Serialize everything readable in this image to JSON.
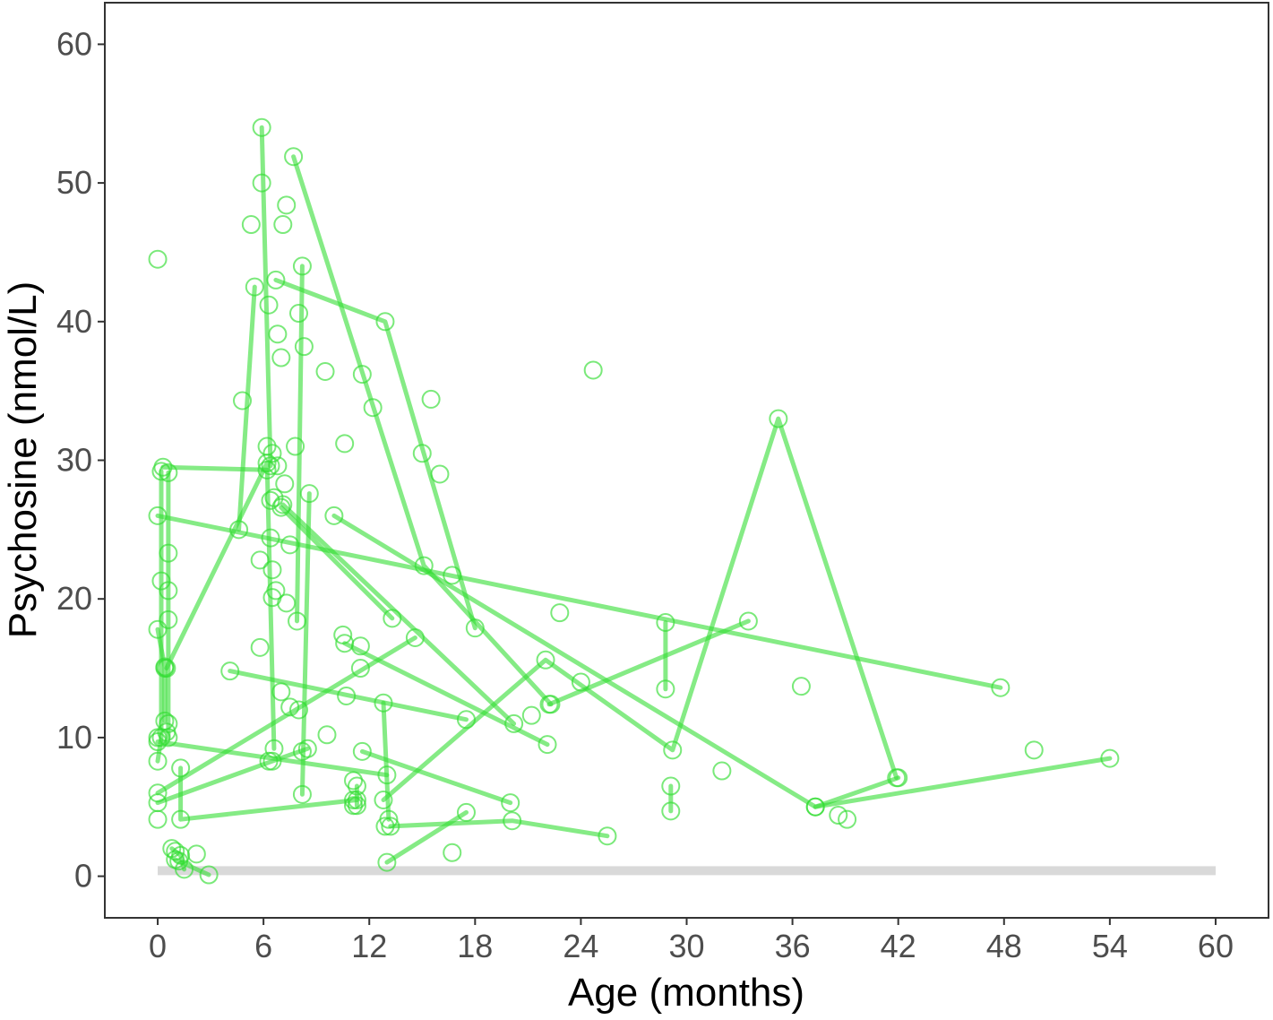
{
  "chart_data": {
    "type": "scatter",
    "xlabel": "Age (months)",
    "ylabel": "Psychosine (nmol/L)",
    "xlim": [
      -3,
      63
    ],
    "ylim": [
      -3,
      63
    ],
    "x_ticks": [
      0,
      6,
      12,
      18,
      24,
      30,
      36,
      42,
      48,
      54,
      60
    ],
    "y_ticks": [
      0,
      10,
      20,
      30,
      40,
      50,
      60
    ],
    "grid": false,
    "legend": "none",
    "colors": {
      "series": "#33dd33",
      "reference": "#d9d9d9",
      "axis": "#333333",
      "tick_text": "#4d4d4d"
    },
    "reference_band": {
      "x": [
        0,
        60
      ],
      "y": 0.4
    },
    "series": [
      {
        "points": [
          [
            0.3,
            29.5
          ],
          [
            6.2,
            29.3
          ]
        ]
      },
      {
        "points": [
          [
            0.0,
            26.0
          ],
          [
            47.8,
            13.6
          ]
        ]
      },
      {
        "points": [
          [
            0.6,
            29.1
          ],
          [
            0.6,
            23.3
          ],
          [
            0.6,
            20.6
          ],
          [
            0.6,
            18.5
          ],
          [
            0.6,
            11.0
          ],
          [
            0.6,
            10.0
          ]
        ]
      },
      {
        "points": [
          [
            0.0,
            17.8
          ],
          [
            0.4,
            15.1
          ],
          [
            0.4,
            11.2
          ]
        ]
      },
      {
        "points": [
          [
            0.2,
            29.2
          ],
          [
            0.2,
            21.3
          ],
          [
            0.2,
            10.0
          ],
          [
            0.0,
            8.3
          ]
        ]
      },
      {
        "points": [
          [
            0.5,
            15.0
          ],
          [
            6.2,
            29.8
          ],
          [
            6.6,
            9.2
          ]
        ]
      },
      {
        "points": [
          [
            0.0,
            9.7
          ],
          [
            13.0,
            7.3
          ]
        ]
      },
      {
        "points": [
          [
            0.0,
            6.0
          ],
          [
            14.6,
            17.2
          ]
        ]
      },
      {
        "points": [
          [
            0.0,
            5.3
          ],
          [
            6.5,
            8.3
          ],
          [
            8.5,
            9.2
          ]
        ]
      },
      {
        "points": [
          [
            1.3,
            7.8
          ],
          [
            1.3,
            4.1
          ],
          [
            11.3,
            5.5
          ]
        ]
      },
      {
        "points": [
          [
            0.8,
            2.0
          ],
          [
            1.3,
            1.5
          ],
          [
            1.5,
            0.5
          ]
        ]
      },
      {
        "points": [
          [
            1.0,
            1.2
          ],
          [
            2.9,
            0.1
          ]
        ]
      },
      {
        "points": [
          [
            4.6,
            25.0
          ],
          [
            5.5,
            42.5
          ]
        ]
      },
      {
        "points": [
          [
            5.9,
            54.0
          ],
          [
            6.4,
            29.6
          ]
        ]
      },
      {
        "points": [
          [
            7.7,
            51.9
          ],
          [
            15.1,
            22.4
          ],
          [
            22.3,
            12.4
          ]
        ]
      },
      {
        "points": [
          [
            6.7,
            43.0
          ],
          [
            12.9,
            40.0
          ],
          [
            18.0,
            17.9
          ]
        ]
      },
      {
        "points": [
          [
            8.2,
            44.0
          ],
          [
            7.9,
            18.4
          ]
        ]
      },
      {
        "points": [
          [
            7.0,
            26.6
          ],
          [
            13.3,
            18.6
          ]
        ]
      },
      {
        "points": [
          [
            7.1,
            26.8
          ],
          [
            20.2,
            11.0
          ]
        ]
      },
      {
        "points": [
          [
            8.6,
            27.6
          ],
          [
            8.2,
            5.9
          ]
        ]
      },
      {
        "points": [
          [
            10.0,
            26.0
          ],
          [
            37.3,
            5.0
          ],
          [
            42.0,
            7.1
          ]
        ]
      },
      {
        "points": [
          [
            4.1,
            14.8
          ],
          [
            17.5,
            11.3
          ]
        ]
      },
      {
        "points": [
          [
            10.6,
            16.8
          ],
          [
            22.1,
            9.5
          ]
        ]
      },
      {
        "points": [
          [
            11.6,
            9.0
          ],
          [
            20.0,
            5.3
          ]
        ]
      },
      {
        "points": [
          [
            12.8,
            12.5
          ],
          [
            13.1,
            4.1
          ]
        ]
      },
      {
        "points": [
          [
            12.8,
            5.5
          ],
          [
            22.0,
            15.6
          ],
          [
            29.2,
            9.1
          ],
          [
            35.2,
            33.0
          ],
          [
            41.9,
            7.1
          ]
        ]
      },
      {
        "points": [
          [
            22.2,
            12.4
          ],
          [
            33.5,
            18.4
          ]
        ]
      },
      {
        "points": [
          [
            13.2,
            3.6
          ],
          [
            20.1,
            4.0
          ],
          [
            25.5,
            2.9
          ]
        ]
      },
      {
        "points": [
          [
            13.0,
            1.0
          ],
          [
            17.5,
            4.6
          ]
        ]
      },
      {
        "points": [
          [
            28.8,
            18.3
          ],
          [
            28.8,
            13.5
          ]
        ]
      },
      {
        "points": [
          [
            29.1,
            6.5
          ],
          [
            29.1,
            4.7
          ]
        ]
      },
      {
        "points": [
          [
            37.3,
            5.0
          ],
          [
            54.0,
            8.5
          ]
        ]
      },
      {
        "points": [
          [
            11.3,
            6.5
          ],
          [
            11.3,
            5.1
          ]
        ]
      }
    ],
    "points_only": [
      [
        0.0,
        44.5
      ],
      [
        5.3,
        47.0
      ],
      [
        5.9,
        50.0
      ],
      [
        7.1,
        47.0
      ],
      [
        7.3,
        48.4
      ],
      [
        6.3,
        41.2
      ],
      [
        6.8,
        39.1
      ],
      [
        7.0,
        37.4
      ],
      [
        8.0,
        40.6
      ],
      [
        8.3,
        38.2
      ],
      [
        9.5,
        36.4
      ],
      [
        11.6,
        36.2
      ],
      [
        12.2,
        33.8
      ],
      [
        4.8,
        34.3
      ],
      [
        10.6,
        31.2
      ],
      [
        6.2,
        31.0
      ],
      [
        6.5,
        30.5
      ],
      [
        6.8,
        29.6
      ],
      [
        7.2,
        28.3
      ],
      [
        15.0,
        30.5
      ],
      [
        15.5,
        34.4
      ],
      [
        16.0,
        29.0
      ],
      [
        24.7,
        36.5
      ],
      [
        6.4,
        27.1
      ],
      [
        6.6,
        27.3
      ],
      [
        7.5,
        23.9
      ],
      [
        5.8,
        22.8
      ],
      [
        6.5,
        22.1
      ],
      [
        5.8,
        16.5
      ],
      [
        6.4,
        24.4
      ],
      [
        6.5,
        20.1
      ],
      [
        6.7,
        20.6
      ],
      [
        7.3,
        19.7
      ],
      [
        7.0,
        13.3
      ],
      [
        7.5,
        12.2
      ],
      [
        8.0,
        12.0
      ],
      [
        7.8,
        31.0
      ],
      [
        10.5,
        17.4
      ],
      [
        11.5,
        16.6
      ],
      [
        11.5,
        15.0
      ],
      [
        10.7,
        13.0
      ],
      [
        16.7,
        21.7
      ],
      [
        22.8,
        19.0
      ],
      [
        24.0,
        14.0
      ],
      [
        21.2,
        11.6
      ],
      [
        9.6,
        10.2
      ],
      [
        6.3,
        8.3
      ],
      [
        8.2,
        9.0
      ],
      [
        11.1,
        5.5
      ],
      [
        11.1,
        5.1
      ],
      [
        11.1,
        6.9
      ],
      [
        12.9,
        3.6
      ],
      [
        16.7,
        1.7
      ],
      [
        32.0,
        7.6
      ],
      [
        36.5,
        13.7
      ],
      [
        38.6,
        4.4
      ],
      [
        39.1,
        4.1
      ],
      [
        49.7,
        9.1
      ],
      [
        0.0,
        4.1
      ],
      [
        0.0,
        10.0
      ],
      [
        0.5,
        10.4
      ],
      [
        0.4,
        15.0
      ],
      [
        2.2,
        1.6
      ],
      [
        1.0,
        1.8
      ],
      [
        1.2,
        1.1
      ]
    ]
  }
}
